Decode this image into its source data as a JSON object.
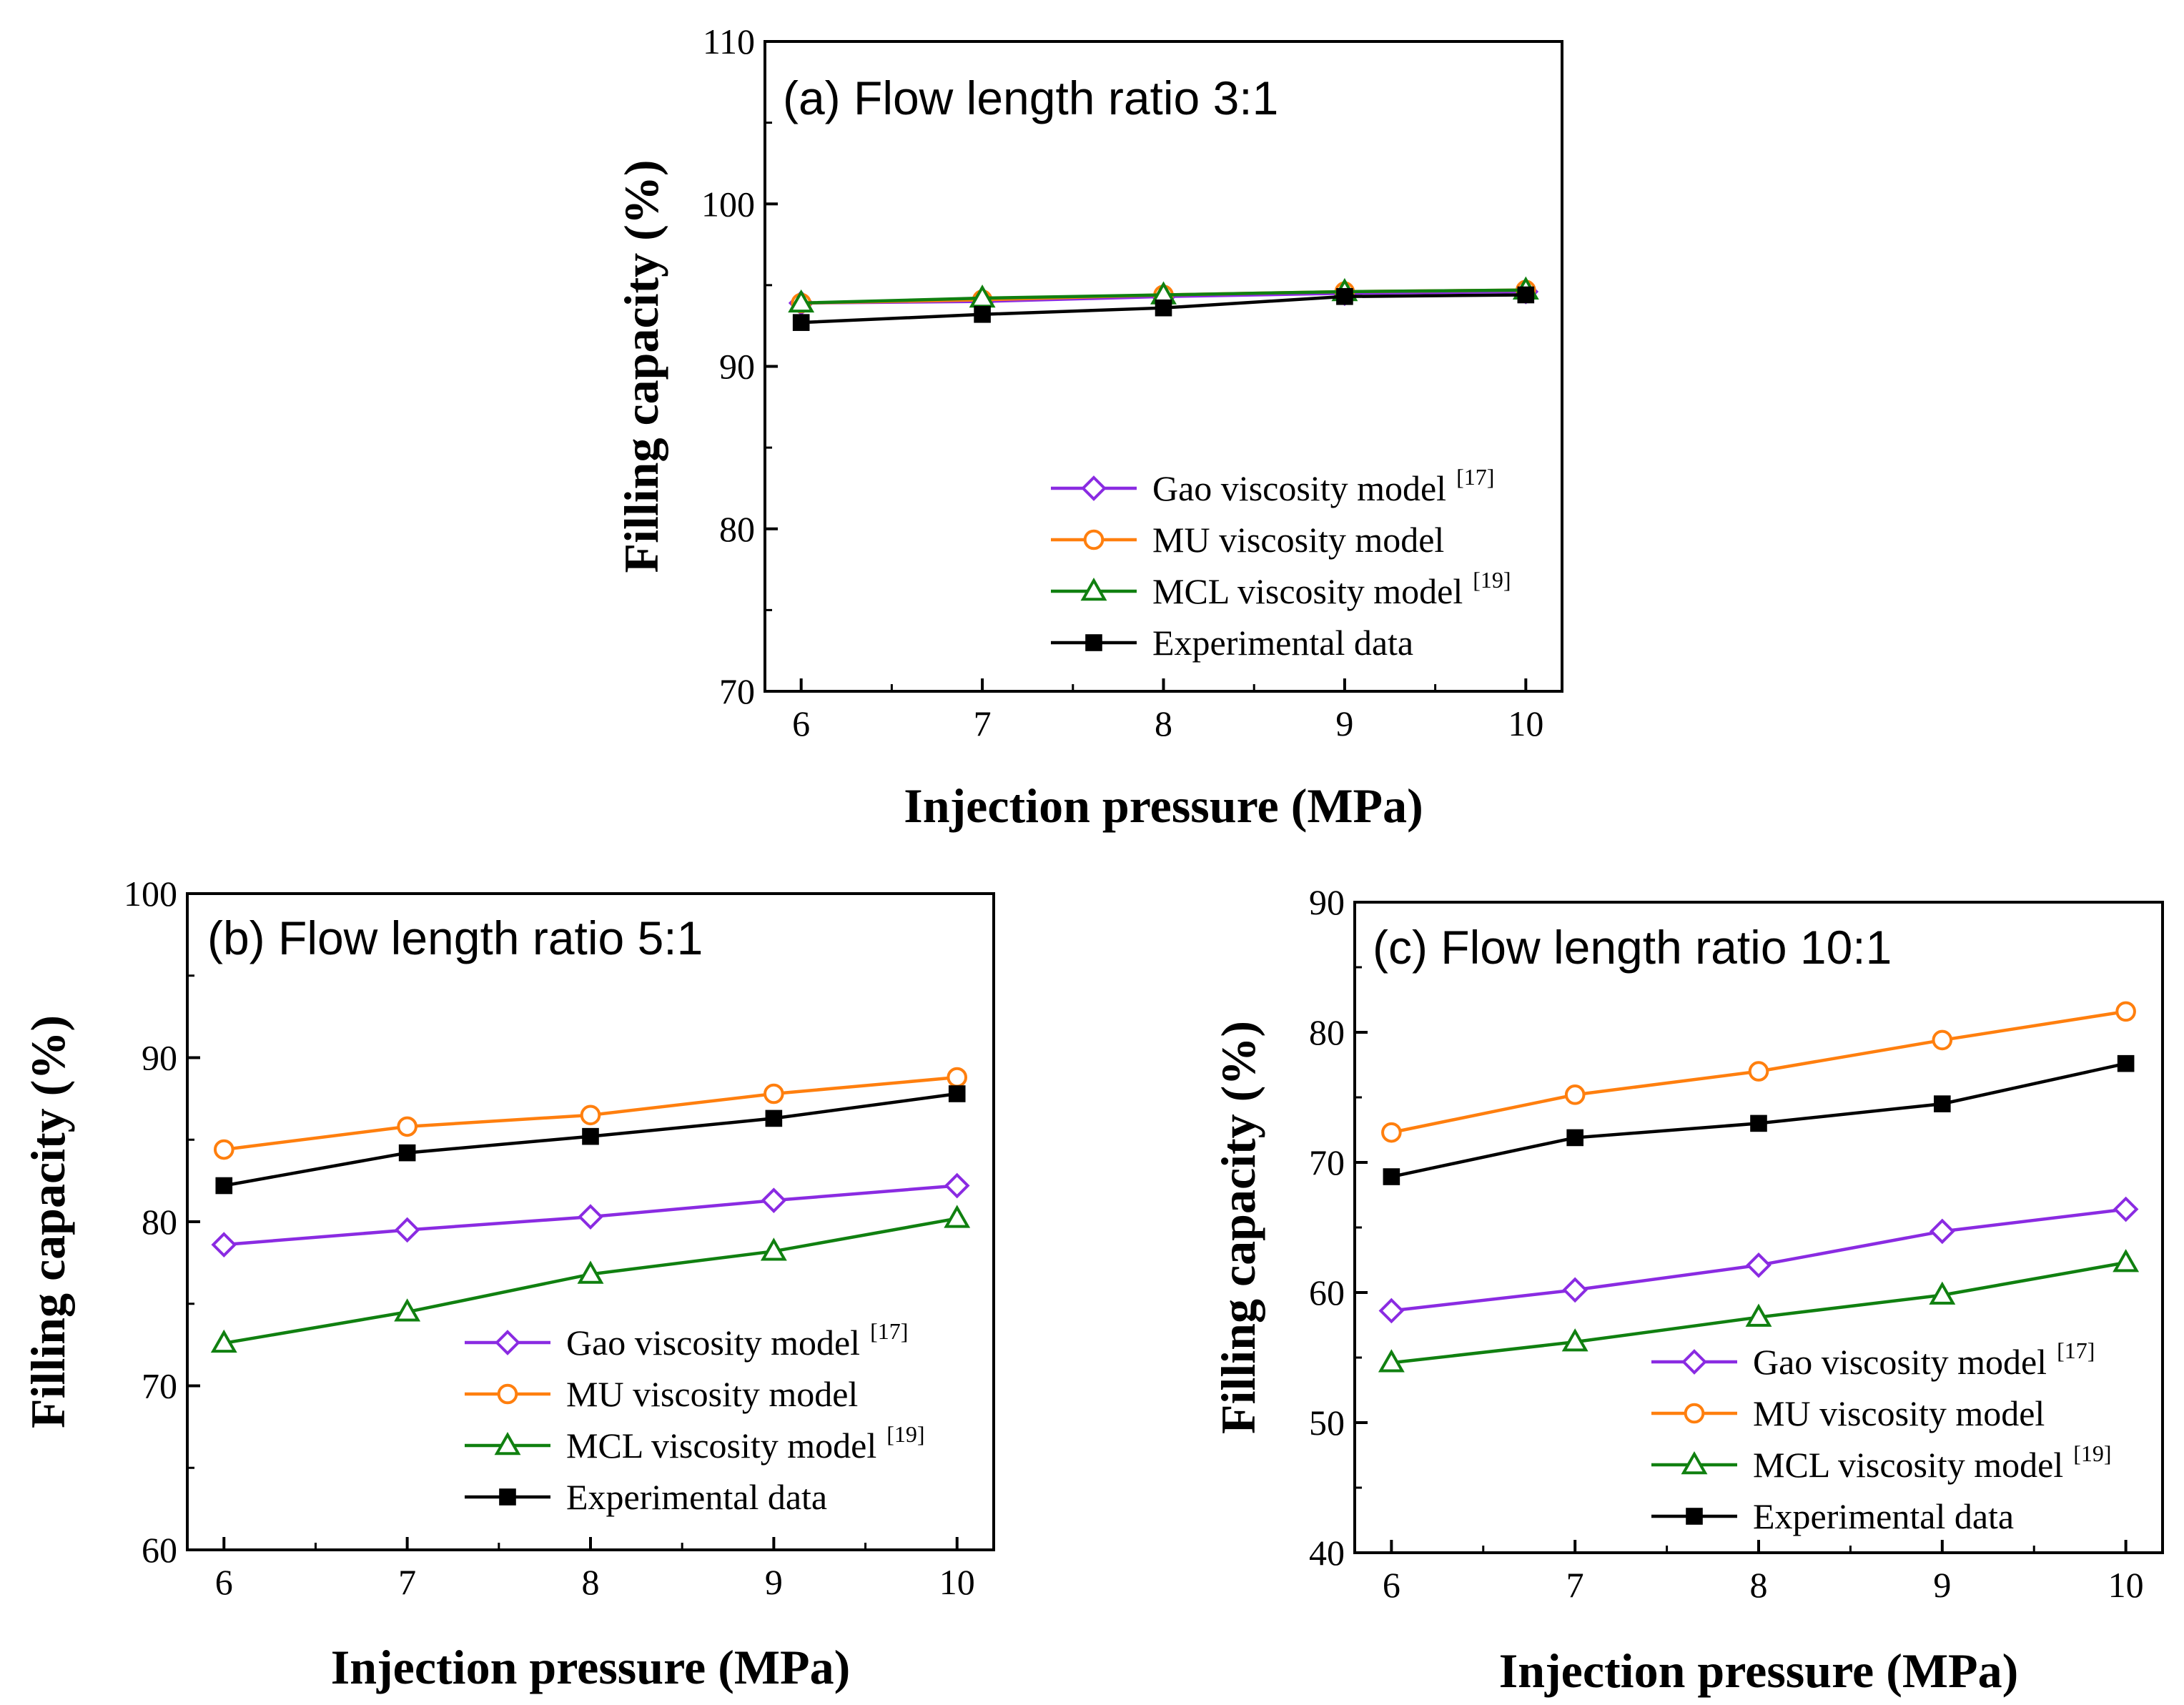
{
  "chart_data": [
    {
      "type": "line",
      "title": "(a) Flow length ratio 3:1",
      "xlabel": "Injection pressure (MPa)",
      "ylabel": "Filling capacity (%)",
      "x": [
        6,
        7,
        8,
        9,
        10
      ],
      "xlim": [
        5.8,
        10.2
      ],
      "ylim": [
        70,
        110
      ],
      "yticks": [
        70,
        80,
        90,
        100,
        110
      ],
      "xticks": [
        6,
        7,
        8,
        9,
        10
      ],
      "legend_position": "lower-right",
      "series": [
        {
          "name": "Gao viscosity model",
          "ref": "[17]",
          "marker": "diamond",
          "color": "#8a2be2",
          "values": [
            93.9,
            94.0,
            94.3,
            94.5,
            94.6
          ]
        },
        {
          "name": "MU viscosity model",
          "ref": "",
          "marker": "circle",
          "color": "#ff7f0e",
          "values": [
            93.9,
            94.1,
            94.4,
            94.6,
            94.7
          ]
        },
        {
          "name": "MCL viscosity model",
          "ref": "[19]",
          "marker": "triangle",
          "color": "#108010",
          "values": [
            93.9,
            94.2,
            94.4,
            94.6,
            94.7
          ]
        },
        {
          "name": "Experimental data",
          "ref": "",
          "marker": "square",
          "color": "#000000",
          "values": [
            92.7,
            93.2,
            93.6,
            94.3,
            94.4
          ]
        }
      ]
    },
    {
      "type": "line",
      "title": "(b) Flow length ratio 5:1",
      "xlabel": "Injection pressure (MPa)",
      "ylabel": "Filling capacity (%)",
      "x": [
        6,
        7,
        8,
        9,
        10
      ],
      "xlim": [
        5.8,
        10.2
      ],
      "ylim": [
        60,
        100
      ],
      "yticks": [
        60,
        70,
        80,
        90,
        100
      ],
      "xticks": [
        6,
        7,
        8,
        9,
        10
      ],
      "legend_position": "lower-right",
      "series": [
        {
          "name": "Gao viscosity model",
          "ref": "[17]",
          "marker": "diamond",
          "color": "#8a2be2",
          "values": [
            78.6,
            79.5,
            80.3,
            81.3,
            82.2
          ]
        },
        {
          "name": "MU viscosity model",
          "ref": "",
          "marker": "circle",
          "color": "#ff7f0e",
          "values": [
            84.4,
            85.8,
            86.5,
            87.8,
            88.8
          ]
        },
        {
          "name": "MCL viscosity model",
          "ref": "[19]",
          "marker": "triangle",
          "color": "#108010",
          "values": [
            72.6,
            74.5,
            76.8,
            78.2,
            80.2
          ]
        },
        {
          "name": "Experimental data",
          "ref": "",
          "marker": "square",
          "color": "#000000",
          "values": [
            82.2,
            84.2,
            85.2,
            86.3,
            87.8
          ]
        }
      ]
    },
    {
      "type": "line",
      "title": "(c) Flow length ratio 10:1",
      "xlabel": "Injection pressure (MPa)",
      "ylabel": "Filling capacity (%)",
      "x": [
        6,
        7,
        8,
        9,
        10
      ],
      "xlim": [
        5.8,
        10.2
      ],
      "ylim": [
        40,
        90
      ],
      "yticks": [
        40,
        50,
        60,
        70,
        80,
        90
      ],
      "xticks": [
        6,
        7,
        8,
        9,
        10
      ],
      "legend_position": "lower-right",
      "series": [
        {
          "name": "Gao viscosity model",
          "ref": "[17]",
          "marker": "diamond",
          "color": "#8a2be2",
          "values": [
            58.6,
            60.2,
            62.1,
            64.7,
            66.4
          ]
        },
        {
          "name": "MU viscosity model",
          "ref": "",
          "marker": "circle",
          "color": "#ff7f0e",
          "values": [
            72.3,
            75.2,
            77.0,
            79.4,
            81.6
          ]
        },
        {
          "name": "MCL viscosity model",
          "ref": "[19]",
          "marker": "triangle",
          "color": "#108010",
          "values": [
            54.6,
            56.2,
            58.1,
            59.8,
            62.3
          ]
        },
        {
          "name": "Experimental data",
          "ref": "",
          "marker": "square",
          "color": "#000000",
          "values": [
            68.9,
            71.9,
            73.0,
            74.5,
            77.6
          ]
        }
      ]
    }
  ]
}
